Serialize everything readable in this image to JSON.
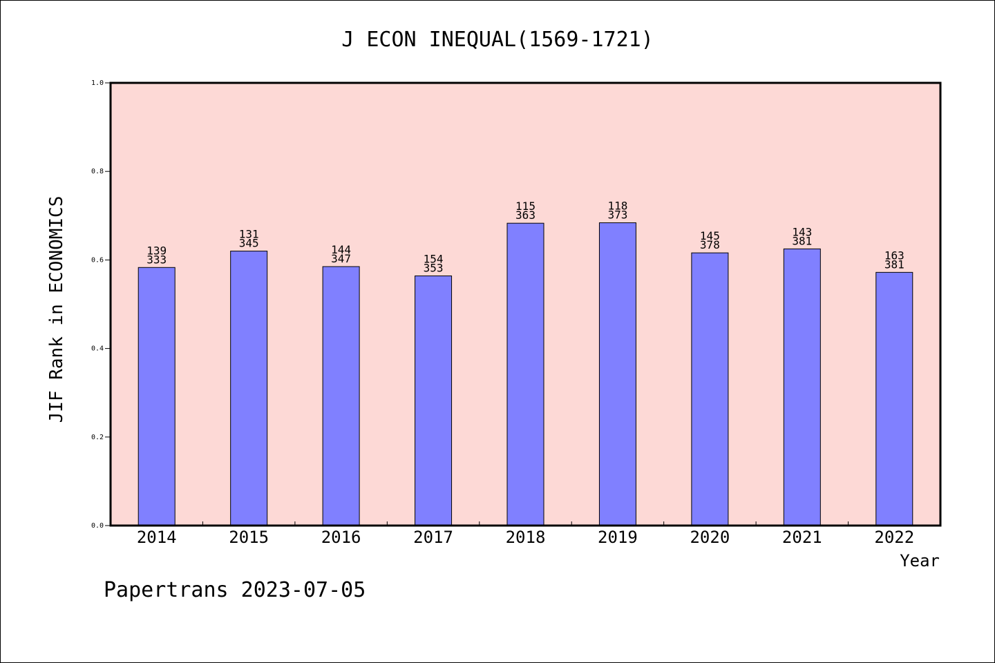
{
  "chart_data": {
    "type": "bar",
    "title": "J ECON INEQUAL(1569-1721)",
    "xlabel": "Year",
    "ylabel": "JIF Rank in ECONOMICS",
    "ylim": [
      0,
      1.0
    ],
    "yticks": [
      "0.0",
      "0.2",
      "0.4",
      "0.6",
      "0.8",
      "1.0"
    ],
    "categories": [
      "2014",
      "2015",
      "2016",
      "2017",
      "2018",
      "2019",
      "2020",
      "2021",
      "2022"
    ],
    "values": [
      0.583,
      0.62,
      0.585,
      0.564,
      0.683,
      0.684,
      0.616,
      0.625,
      0.572
    ],
    "rank": [
      "139",
      "131",
      "144",
      "154",
      "115",
      "118",
      "145",
      "143",
      "163"
    ],
    "total": [
      "333",
      "345",
      "347",
      "353",
      "363",
      "373",
      "378",
      "381",
      "381"
    ],
    "colors": {
      "plot_bg": "#fdd9d6",
      "bar": "#8080ff"
    },
    "grid": false
  },
  "footer": "Papertrans 2023-07-05"
}
